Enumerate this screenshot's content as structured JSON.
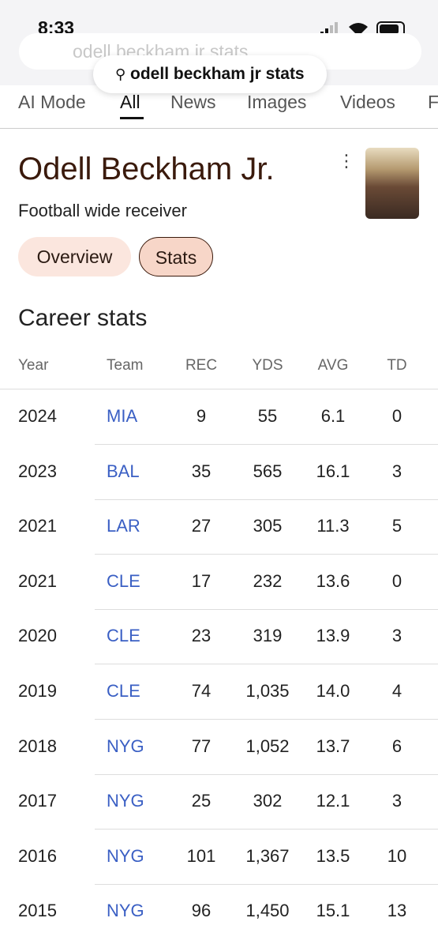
{
  "status_bar": {
    "time": "8:33"
  },
  "search": {
    "query": "odell beckham jr stats",
    "pill": "odell beckham jr stats"
  },
  "tabs": [
    "AI Mode",
    "All",
    "News",
    "Images",
    "Videos",
    "F"
  ],
  "entity": {
    "name": "Odell Beckham Jr.",
    "description": "Football wide receiver",
    "chips": [
      "Overview",
      "Stats"
    ]
  },
  "table": {
    "title": "Career stats",
    "header": [
      "Year",
      "Team",
      "REC",
      "YDS",
      "AVG",
      "TD"
    ],
    "rows": [
      [
        "2024",
        "MIA",
        "9",
        "55",
        "6.1",
        "0"
      ],
      [
        "2023",
        "BAL",
        "35",
        "565",
        "16.1",
        "3"
      ],
      [
        "2021",
        "LAR",
        "27",
        "305",
        "11.3",
        "5"
      ],
      [
        "2021",
        "CLE",
        "17",
        "232",
        "13.6",
        "0"
      ],
      [
        "2020",
        "CLE",
        "23",
        "319",
        "13.9",
        "3"
      ],
      [
        "2019",
        "CLE",
        "74",
        "1,035",
        "14.0",
        "4"
      ],
      [
        "2018",
        "NYG",
        "77",
        "1,052",
        "13.7",
        "6"
      ],
      [
        "2017",
        "NYG",
        "25",
        "302",
        "12.1",
        "3"
      ],
      [
        "2016",
        "NYG",
        "101",
        "1,367",
        "13.5",
        "10"
      ],
      [
        "2015",
        "NYG",
        "96",
        "1,450",
        "15.1",
        "13"
      ]
    ]
  }
}
